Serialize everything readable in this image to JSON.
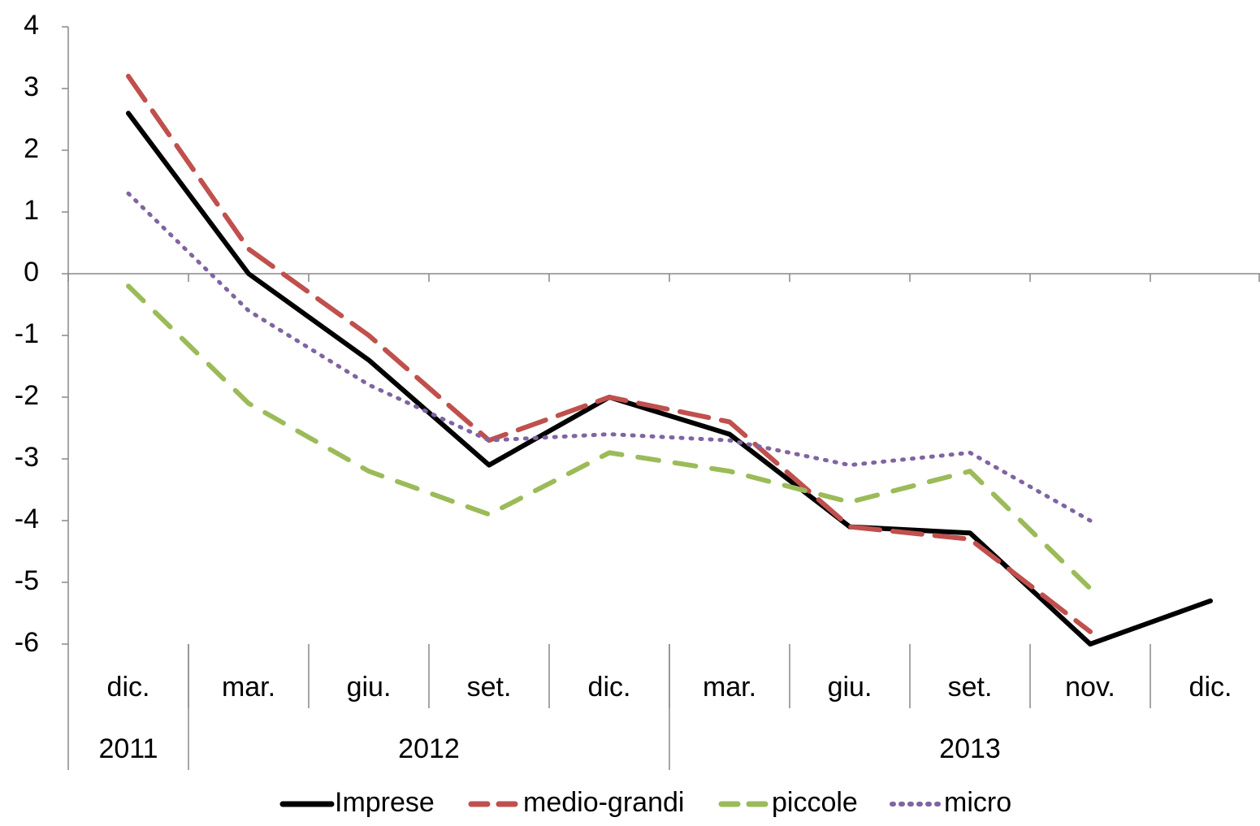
{
  "chart_data": {
    "type": "line",
    "categories": [
      "dic.",
      "mar.",
      "giu.",
      "set.",
      "dic.",
      "mar.",
      "giu.",
      "set.",
      "nov.",
      "dic."
    ],
    "groups": [
      {
        "label": "2011",
        "span": 1
      },
      {
        "label": "2012",
        "span": 4
      },
      {
        "label": "2013",
        "span": 5
      }
    ],
    "ylim": [
      -6,
      4
    ],
    "yticks": [
      4,
      3,
      2,
      1,
      0,
      -1,
      -2,
      -3,
      -4,
      -5,
      -6
    ],
    "grid": false,
    "legend": "bottom",
    "series": [
      {
        "name": "Imprese",
        "color": "#000000",
        "style": "solid",
        "values": [
          2.6,
          0.0,
          -1.4,
          -3.1,
          -2.0,
          -2.6,
          -4.1,
          -4.2,
          -6.0,
          -5.3
        ]
      },
      {
        "name": "medio-grandi",
        "color": "#c0504d",
        "style": "dash",
        "values": [
          3.2,
          0.4,
          -1.0,
          -2.7,
          -2.0,
          -2.4,
          -4.1,
          -4.3,
          -5.8,
          null
        ]
      },
      {
        "name": "piccole",
        "color": "#9bbb59",
        "style": "dash",
        "values": [
          -0.2,
          -2.1,
          -3.2,
          -3.9,
          -2.9,
          -3.2,
          -3.7,
          -3.2,
          -5.1,
          null
        ]
      },
      {
        "name": "micro",
        "color": "#8064a2",
        "style": "dot",
        "values": [
          1.3,
          -0.6,
          -1.8,
          -2.7,
          -2.6,
          -2.7,
          -3.1,
          -2.9,
          -4.0,
          null
        ]
      }
    ]
  }
}
